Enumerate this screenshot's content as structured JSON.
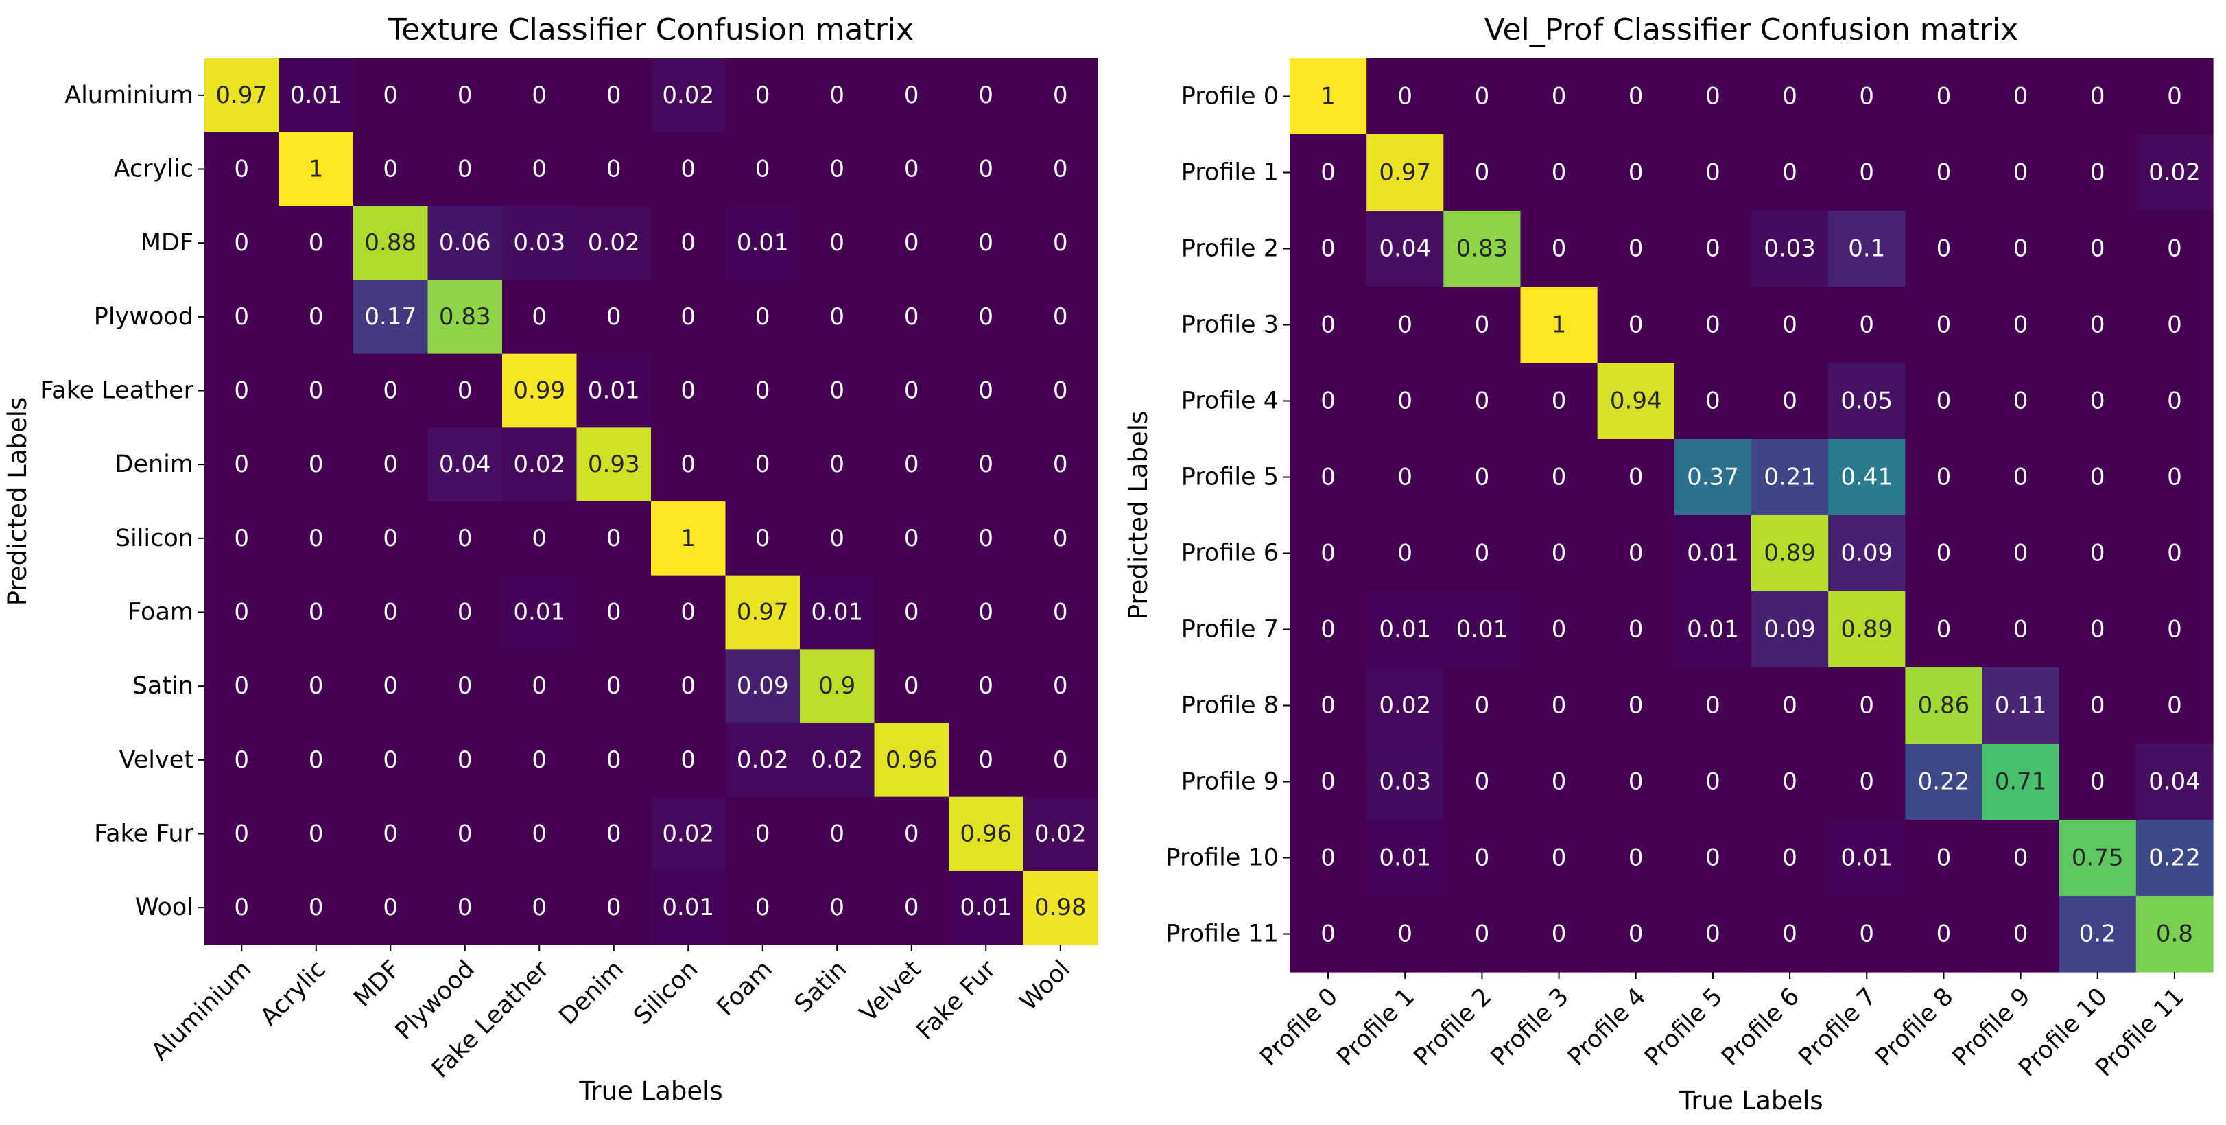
{
  "chart_data": [
    {
      "type": "heatmap",
      "title": "Texture Classifier Confusion matrix",
      "xlabel": "True Labels",
      "ylabel": "Predicted Labels",
      "colormap": "viridis",
      "vmin": 0,
      "vmax": 1,
      "categories": [
        "Aluminium",
        "Acrylic",
        "MDF",
        "Plywood",
        "Fake Leather",
        "Denim",
        "Silicon",
        "Foam",
        "Satin",
        "Velvet",
        "Fake Fur",
        "Wool"
      ],
      "values": [
        [
          0.97,
          0.01,
          0,
          0,
          0,
          0,
          0.02,
          0,
          0,
          0,
          0,
          0
        ],
        [
          0,
          1,
          0,
          0,
          0,
          0,
          0,
          0,
          0,
          0,
          0,
          0
        ],
        [
          0,
          0,
          0.88,
          0.06,
          0.03,
          0.02,
          0,
          0.01,
          0,
          0,
          0,
          0
        ],
        [
          0,
          0,
          0.17,
          0.83,
          0,
          0,
          0,
          0,
          0,
          0,
          0,
          0
        ],
        [
          0,
          0,
          0,
          0,
          0.99,
          0.01,
          0,
          0,
          0,
          0,
          0,
          0
        ],
        [
          0,
          0,
          0,
          0.04,
          0.02,
          0.93,
          0,
          0,
          0,
          0,
          0,
          0
        ],
        [
          0,
          0,
          0,
          0,
          0,
          0,
          1,
          0,
          0,
          0,
          0,
          0
        ],
        [
          0,
          0,
          0,
          0,
          0.01,
          0,
          0,
          0.97,
          0.01,
          0,
          0,
          0
        ],
        [
          0,
          0,
          0,
          0,
          0,
          0,
          0,
          0.09,
          0.9,
          0,
          0,
          0
        ],
        [
          0,
          0,
          0,
          0,
          0,
          0,
          0,
          0.02,
          0.02,
          0.96,
          0,
          0
        ],
        [
          0,
          0,
          0,
          0,
          0,
          0,
          0.02,
          0,
          0,
          0,
          0.96,
          0.02
        ],
        [
          0,
          0,
          0,
          0,
          0,
          0,
          0.01,
          0,
          0,
          0,
          0.01,
          0.98
        ]
      ]
    },
    {
      "type": "heatmap",
      "title": "Vel_Prof Classifier Confusion matrix",
      "xlabel": "True Labels",
      "ylabel": "Predicted Labels",
      "colormap": "viridis",
      "vmin": 0,
      "vmax": 1,
      "categories": [
        "Profile 0",
        "Profile 1",
        "Profile 2",
        "Profile 3",
        "Profile 4",
        "Profile 5",
        "Profile 6",
        "Profile 7",
        "Profile 8",
        "Profile 9",
        "Profile 10",
        "Profile 11"
      ],
      "values": [
        [
          1,
          0,
          0,
          0,
          0,
          0,
          0,
          0,
          0,
          0,
          0,
          0
        ],
        [
          0,
          0.97,
          0,
          0,
          0,
          0,
          0,
          0,
          0,
          0,
          0,
          0.02
        ],
        [
          0,
          0.04,
          0.83,
          0,
          0,
          0,
          0.03,
          0.1,
          0,
          0,
          0,
          0
        ],
        [
          0,
          0,
          0,
          1,
          0,
          0,
          0,
          0,
          0,
          0,
          0,
          0
        ],
        [
          0,
          0,
          0,
          0,
          0.94,
          0,
          0,
          0.05,
          0,
          0,
          0,
          0
        ],
        [
          0,
          0,
          0,
          0,
          0,
          0.37,
          0.21,
          0.41,
          0,
          0,
          0,
          0
        ],
        [
          0,
          0,
          0,
          0,
          0,
          0.01,
          0.89,
          0.09,
          0,
          0,
          0,
          0
        ],
        [
          0,
          0.01,
          0.01,
          0,
          0,
          0.01,
          0.09,
          0.89,
          0,
          0,
          0,
          0
        ],
        [
          0,
          0.02,
          0,
          0,
          0,
          0,
          0,
          0,
          0.86,
          0.11,
          0,
          0
        ],
        [
          0,
          0.03,
          0,
          0,
          0,
          0,
          0,
          0,
          0.22,
          0.71,
          0,
          0.04
        ],
        [
          0,
          0.01,
          0,
          0,
          0,
          0,
          0,
          0.01,
          0,
          0,
          0.75,
          0.22
        ],
        [
          0,
          0,
          0,
          0,
          0,
          0,
          0,
          0,
          0,
          0,
          0.2,
          0.8
        ]
      ]
    }
  ]
}
